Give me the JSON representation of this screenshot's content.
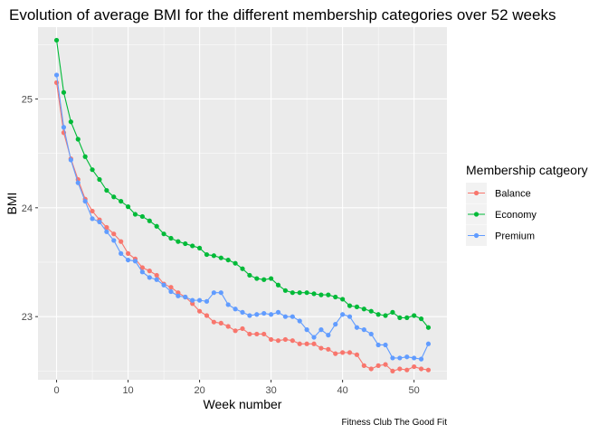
{
  "chart_data": {
    "type": "line",
    "title": "Evolution of average BMI for the different membership categories over 52 weeks",
    "xlabel": "Week number",
    "ylabel": "BMI",
    "caption": "Fitness Club The Good Fit",
    "xlim": [
      -2.6,
      54.6
    ],
    "ylim": [
      22.42,
      25.66
    ],
    "x_ticks": [
      0,
      10,
      20,
      30,
      40,
      50
    ],
    "y_ticks": [
      23,
      24,
      25
    ],
    "grid": true,
    "legend": {
      "title": "Membership catgeory",
      "position": "right"
    },
    "x": [
      0,
      1,
      2,
      3,
      4,
      5,
      6,
      7,
      8,
      9,
      10,
      11,
      12,
      13,
      14,
      15,
      16,
      17,
      18,
      19,
      20,
      21,
      22,
      23,
      24,
      25,
      26,
      27,
      28,
      29,
      30,
      31,
      32,
      33,
      34,
      35,
      36,
      37,
      38,
      39,
      40,
      41,
      42,
      43,
      44,
      45,
      46,
      47,
      48,
      49,
      50,
      51,
      52
    ],
    "series": [
      {
        "name": "Balance",
        "color": "#F8766D",
        "values": [
          25.15,
          24.69,
          24.45,
          24.26,
          24.08,
          23.97,
          23.89,
          23.82,
          23.76,
          23.69,
          23.58,
          23.53,
          23.45,
          23.42,
          23.38,
          23.3,
          23.27,
          23.22,
          23.18,
          23.12,
          23.05,
          23.01,
          22.95,
          22.94,
          22.91,
          22.87,
          22.89,
          22.84,
          22.84,
          22.84,
          22.79,
          22.78,
          22.79,
          22.78,
          22.75,
          22.75,
          22.75,
          22.71,
          22.7,
          22.66,
          22.67,
          22.67,
          22.65,
          22.55,
          22.52,
          22.55,
          22.56,
          22.5,
          22.52,
          22.51,
          22.54,
          22.52,
          22.51
        ]
      },
      {
        "name": "Economy",
        "color": "#00BA38",
        "values": [
          25.54,
          25.06,
          24.79,
          24.63,
          24.47,
          24.35,
          24.26,
          24.16,
          24.1,
          24.06,
          24.01,
          23.94,
          23.92,
          23.88,
          23.83,
          23.76,
          23.72,
          23.69,
          23.67,
          23.65,
          23.63,
          23.57,
          23.56,
          23.54,
          23.52,
          23.49,
          23.44,
          23.38,
          23.35,
          23.34,
          23.35,
          23.29,
          23.24,
          23.22,
          23.22,
          23.22,
          23.21,
          23.2,
          23.2,
          23.18,
          23.16,
          23.1,
          23.09,
          23.07,
          23.05,
          23.02,
          23.01,
          23.04,
          22.99,
          22.99,
          23.01,
          22.98,
          22.9
        ]
      },
      {
        "name": "Premium",
        "color": "#619CFF",
        "values": [
          25.22,
          24.74,
          24.44,
          24.23,
          24.06,
          23.9,
          23.87,
          23.78,
          23.7,
          23.58,
          23.52,
          23.51,
          23.41,
          23.36,
          23.34,
          23.29,
          23.23,
          23.19,
          23.18,
          23.15,
          23.15,
          23.14,
          23.22,
          23.22,
          23.11,
          23.07,
          23.04,
          23.01,
          23.02,
          23.03,
          23.02,
          23.04,
          23.0,
          23.0,
          22.96,
          22.88,
          22.81,
          22.88,
          22.83,
          22.93,
          23.02,
          23.0,
          22.9,
          22.88,
          22.84,
          22.74,
          22.74,
          22.62,
          22.62,
          22.63,
          22.62,
          22.61,
          22.75
        ]
      }
    ]
  }
}
